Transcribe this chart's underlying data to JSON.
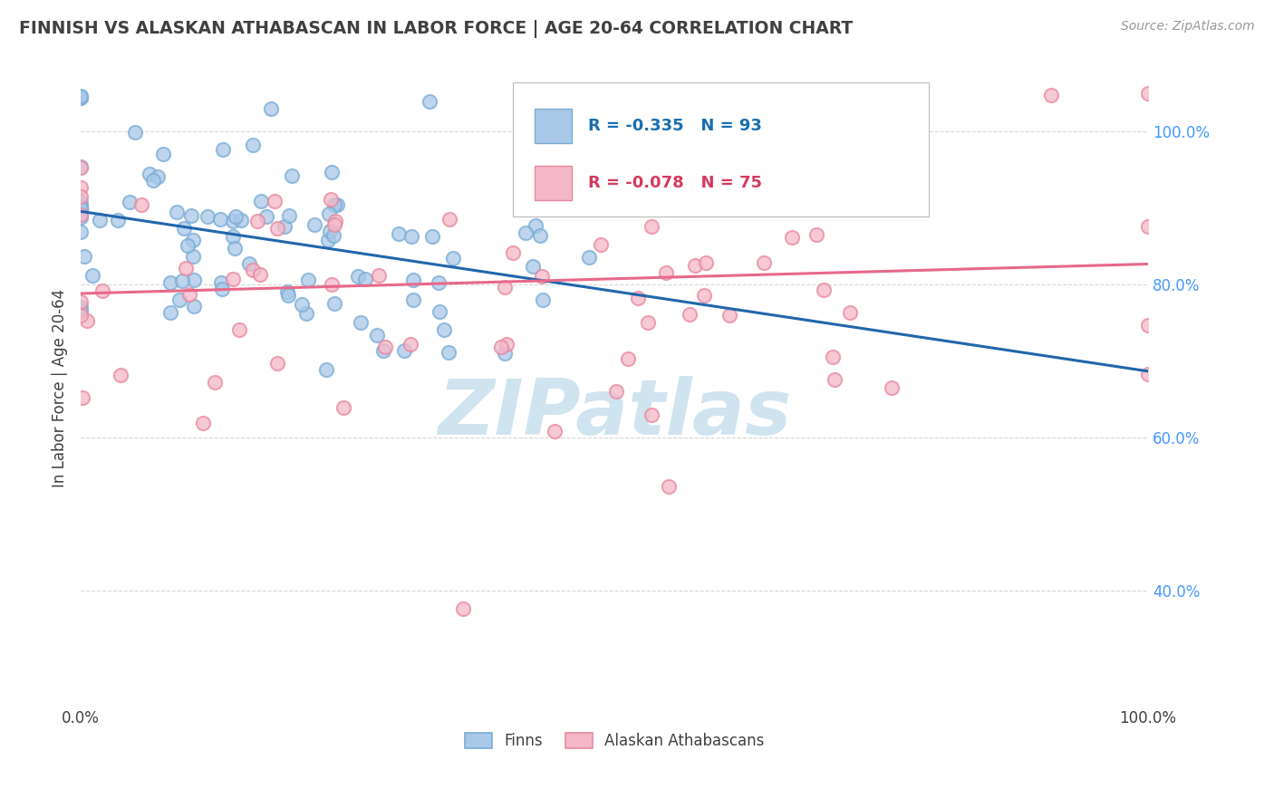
{
  "title": "FINNISH VS ALASKAN ATHABASCAN IN LABOR FORCE | AGE 20-64 CORRELATION CHART",
  "source": "Source: ZipAtlas.com",
  "ylabel": "In Labor Force | Age 20-64",
  "ytick_labels": [
    "40.0%",
    "60.0%",
    "80.0%",
    "100.0%"
  ],
  "xtick_labels": [
    "0.0%",
    "100.0%"
  ],
  "legend_label_finns": "R = -0.335   N = 93",
  "legend_label_atha": "R = -0.078   N = 75",
  "legend_finns": "Finns",
  "legend_atha": "Alaskan Athabascans",
  "finns_color": "#a8c8e8",
  "athabascan_color": "#f5b8c8",
  "finns_edge_color": "#7aacd4",
  "athabascan_edge_color": "#e888a0",
  "finns_trend_color": "#2166ac",
  "athabascan_trend_color": "#e8688a",
  "background_color": "#ffffff",
  "grid_color": "#cccccc",
  "title_color": "#404040",
  "axis_color": "#404040",
  "ytick_color": "#4499ff",
  "watermark": "ZIPatlas",
  "watermark_color": "#d0e4f0",
  "seed": 42,
  "finns_n": 93,
  "finns_r": -0.335,
  "athabascan_n": 75,
  "athabascan_r": -0.078
}
